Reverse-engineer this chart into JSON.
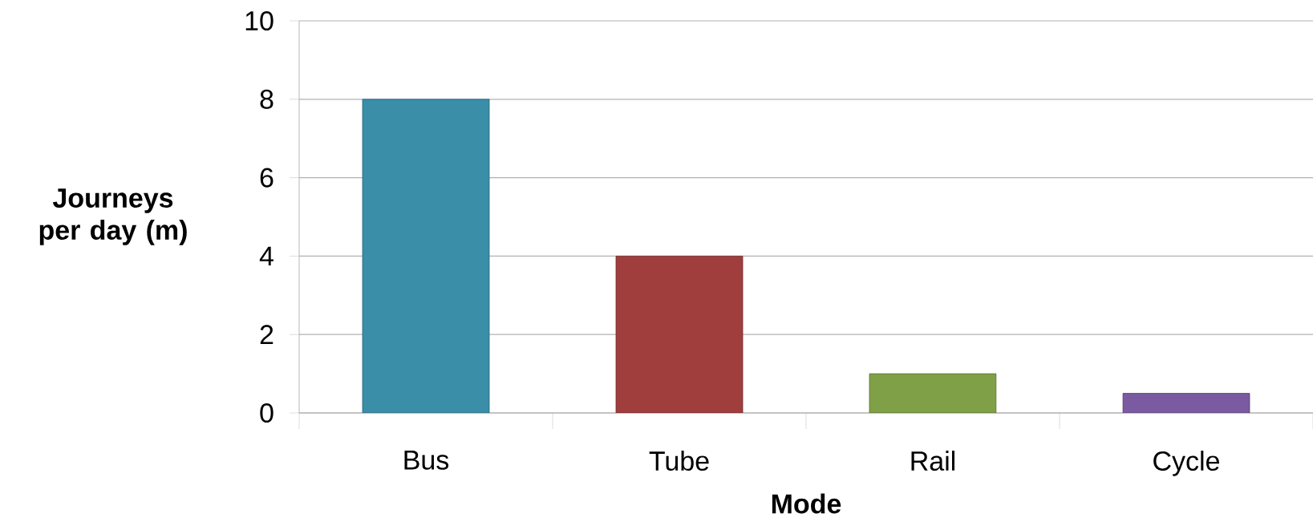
{
  "chart_data": {
    "type": "bar",
    "xlabel": "Mode",
    "ylabel": "Journeys per day (m)",
    "categories": [
      "Bus",
      "Tube",
      "Rail",
      "Cycle"
    ],
    "values": [
      8,
      4,
      1,
      0.5
    ],
    "colors": [
      "#3a8ea8",
      "#a03d3d",
      "#7fa046",
      "#7a5aa0"
    ],
    "ylim": [
      0,
      10
    ],
    "yticks": [
      0,
      2,
      4,
      6,
      8,
      10
    ],
    "grid": "y"
  }
}
